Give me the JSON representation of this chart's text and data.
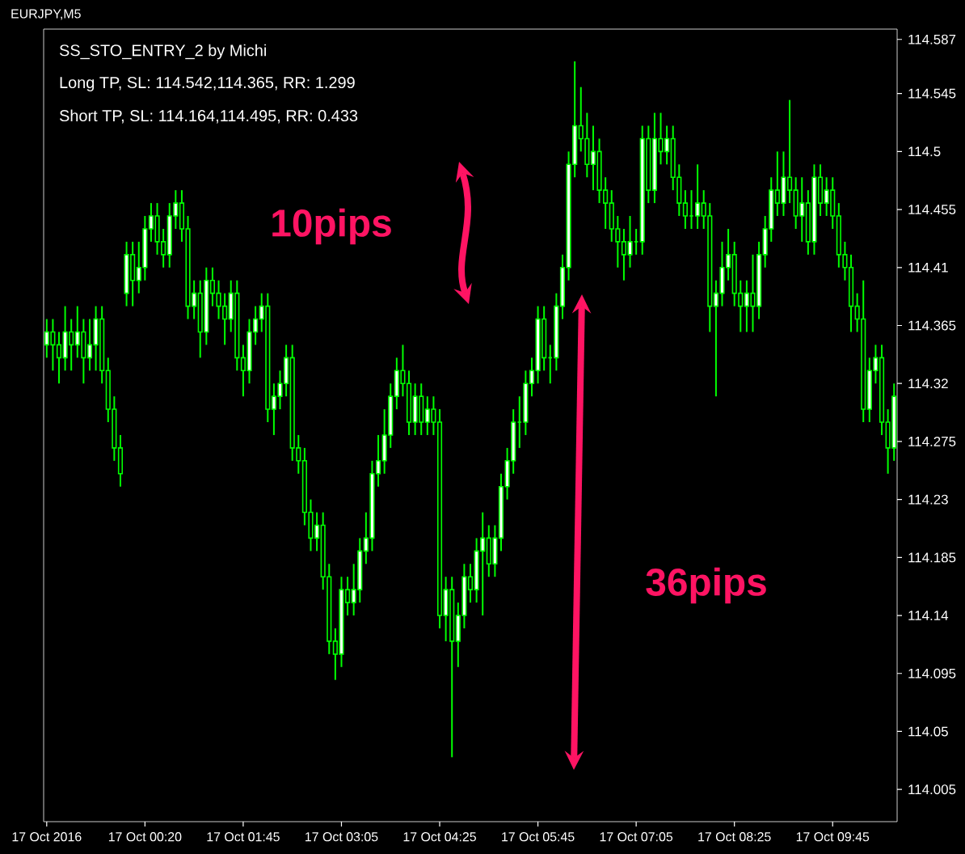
{
  "chart_data": {
    "type": "candlestick",
    "title": "EURJPY,M5",
    "annotations": [
      "SS_STO_ENTRY_2 by Michi",
      "Long  TP, SL: 114.542,114.365, RR: 1.299",
      "Short TP, SL: 114.164,114.495, RR: 0.433",
      "10pips",
      "36pips"
    ],
    "color": "#00ff00",
    "categories": [
      "17 Oct 2016",
      null,
      null,
      null,
      null,
      null,
      null,
      null,
      null,
      null,
      null,
      null,
      null,
      null,
      null,
      null,
      "17 Oct 00:20",
      null,
      null,
      null,
      null,
      null,
      null,
      null,
      null,
      null,
      null,
      null,
      null,
      null,
      null,
      null,
      "17 Oct 01:45",
      null,
      null,
      null,
      null,
      null,
      null,
      null,
      null,
      null,
      null,
      null,
      null,
      null,
      null,
      null,
      "17 Oct 03:05",
      null,
      null,
      null,
      null,
      null,
      null,
      null,
      null,
      null,
      null,
      null,
      null,
      null,
      null,
      null,
      "17 Oct 04:25",
      null,
      null,
      null,
      null,
      null,
      null,
      null,
      null,
      null,
      null,
      null,
      null,
      null,
      null,
      null,
      "17 Oct 05:45",
      null,
      null,
      null,
      null,
      null,
      null,
      null,
      null,
      null,
      null,
      null,
      null,
      null,
      null,
      null,
      "17 Oct 07:05",
      null,
      null,
      null,
      null,
      null,
      null,
      null,
      null,
      null,
      null,
      null,
      null,
      null,
      null,
      null,
      "17 Oct 08:25",
      null,
      null,
      null,
      null,
      null,
      null,
      null,
      null,
      null,
      null,
      null,
      null,
      null,
      null,
      null,
      "17 Oct 09:45",
      null,
      null,
      null,
      null,
      null,
      null,
      null,
      null,
      null,
      null
    ],
    "ohlc": [
      [
        114.35,
        114.37,
        114.34,
        114.36
      ],
      [
        114.36,
        114.37,
        114.33,
        114.35
      ],
      [
        114.35,
        114.36,
        114.32,
        114.34
      ],
      [
        114.34,
        114.38,
        114.33,
        114.36
      ],
      [
        114.36,
        114.37,
        114.33,
        114.35
      ],
      [
        114.35,
        114.38,
        114.34,
        114.36
      ],
      [
        114.36,
        114.37,
        114.32,
        114.34
      ],
      [
        114.34,
        114.37,
        114.33,
        114.35
      ],
      [
        114.35,
        114.38,
        114.33,
        114.37
      ],
      [
        114.37,
        114.38,
        114.32,
        114.33
      ],
      [
        114.33,
        114.34,
        114.29,
        114.3
      ],
      [
        114.3,
        114.31,
        114.26,
        114.27
      ],
      [
        114.27,
        114.28,
        114.24,
        114.25
      ],
      [
        114.39,
        114.43,
        114.38,
        114.42
      ],
      [
        114.42,
        114.43,
        114.38,
        114.4
      ],
      [
        114.4,
        114.43,
        114.39,
        114.41
      ],
      [
        114.41,
        114.45,
        114.4,
        114.44
      ],
      [
        114.44,
        114.46,
        114.43,
        114.45
      ],
      [
        114.45,
        114.46,
        114.42,
        114.43
      ],
      [
        114.43,
        114.44,
        114.41,
        114.42
      ],
      [
        114.42,
        114.46,
        114.41,
        114.45
      ],
      [
        114.45,
        114.47,
        114.44,
        114.46
      ],
      [
        114.46,
        114.47,
        114.43,
        114.44
      ],
      [
        114.44,
        114.45,
        114.37,
        114.38
      ],
      [
        114.38,
        114.4,
        114.37,
        114.39
      ],
      [
        114.39,
        114.4,
        114.34,
        114.36
      ],
      [
        114.36,
        114.41,
        114.35,
        114.4
      ],
      [
        114.4,
        114.41,
        114.38,
        114.39
      ],
      [
        114.39,
        114.4,
        114.37,
        114.38
      ],
      [
        114.38,
        114.39,
        114.35,
        114.37
      ],
      [
        114.37,
        114.4,
        114.36,
        114.39
      ],
      [
        114.39,
        114.4,
        114.33,
        114.34
      ],
      [
        114.34,
        114.35,
        114.31,
        114.33
      ],
      [
        114.33,
        114.37,
        114.32,
        114.36
      ],
      [
        114.36,
        114.38,
        114.35,
        114.37
      ],
      [
        114.37,
        114.39,
        114.36,
        114.38
      ],
      [
        114.38,
        114.39,
        114.29,
        114.3
      ],
      [
        114.3,
        114.32,
        114.28,
        114.31
      ],
      [
        114.31,
        114.33,
        114.3,
        114.32
      ],
      [
        114.32,
        114.35,
        114.31,
        114.34
      ],
      [
        114.34,
        114.35,
        114.26,
        114.27
      ],
      [
        114.27,
        114.28,
        114.25,
        114.26
      ],
      [
        114.26,
        114.27,
        114.21,
        114.22
      ],
      [
        114.22,
        114.23,
        114.19,
        114.2
      ],
      [
        114.2,
        114.22,
        114.19,
        114.21
      ],
      [
        114.21,
        114.22,
        114.16,
        114.17
      ],
      [
        114.17,
        114.18,
        114.11,
        114.12
      ],
      [
        114.12,
        114.13,
        114.09,
        114.11
      ],
      [
        114.11,
        114.17,
        114.1,
        114.16
      ],
      [
        114.16,
        114.17,
        114.14,
        114.15
      ],
      [
        114.15,
        114.18,
        114.14,
        114.16
      ],
      [
        114.16,
        114.2,
        114.15,
        114.19
      ],
      [
        114.19,
        114.22,
        114.18,
        114.2
      ],
      [
        114.2,
        114.26,
        114.19,
        114.25
      ],
      [
        114.25,
        114.28,
        114.24,
        114.26
      ],
      [
        114.26,
        114.3,
        114.25,
        114.28
      ],
      [
        114.28,
        114.32,
        114.27,
        114.31
      ],
      [
        114.31,
        114.34,
        114.3,
        114.33
      ],
      [
        114.33,
        114.35,
        114.31,
        114.32
      ],
      [
        114.32,
        114.33,
        114.28,
        114.29
      ],
      [
        114.29,
        114.32,
        114.28,
        114.31
      ],
      [
        114.31,
        114.32,
        114.28,
        114.29
      ],
      [
        114.29,
        114.31,
        114.28,
        114.3
      ],
      [
        114.3,
        114.31,
        114.28,
        114.29
      ],
      [
        114.29,
        114.3,
        114.13,
        114.14
      ],
      [
        114.14,
        114.17,
        114.12,
        114.16
      ],
      [
        114.16,
        114.17,
        114.03,
        114.12
      ],
      [
        114.12,
        114.15,
        114.1,
        114.14
      ],
      [
        114.14,
        114.18,
        114.13,
        114.17
      ],
      [
        114.17,
        114.18,
        114.15,
        114.16
      ],
      [
        114.16,
        114.2,
        114.15,
        114.19
      ],
      [
        114.19,
        114.22,
        114.14,
        114.2
      ],
      [
        114.2,
        114.21,
        114.17,
        114.18
      ],
      [
        114.18,
        114.21,
        114.17,
        114.2
      ],
      [
        114.2,
        114.25,
        114.19,
        114.24
      ],
      [
        114.24,
        114.27,
        114.23,
        114.26
      ],
      [
        114.26,
        114.3,
        114.25,
        114.29
      ],
      [
        114.29,
        114.31,
        114.27,
        114.29
      ],
      [
        114.29,
        114.33,
        114.28,
        114.32
      ],
      [
        114.32,
        114.34,
        114.31,
        114.33
      ],
      [
        114.33,
        114.38,
        114.32,
        114.37
      ],
      [
        114.37,
        114.38,
        114.33,
        114.34
      ],
      [
        114.34,
        114.35,
        114.32,
        114.34
      ],
      [
        114.34,
        114.39,
        114.33,
        114.38
      ],
      [
        114.38,
        114.42,
        114.37,
        114.41
      ],
      [
        114.41,
        114.5,
        114.4,
        114.49
      ],
      [
        114.49,
        114.57,
        114.48,
        114.52
      ],
      [
        114.52,
        114.55,
        114.5,
        114.51
      ],
      [
        114.51,
        114.53,
        114.48,
        114.49
      ],
      [
        114.49,
        114.52,
        114.47,
        114.5
      ],
      [
        114.5,
        114.51,
        114.46,
        114.47
      ],
      [
        114.47,
        114.48,
        114.44,
        114.46
      ],
      [
        114.46,
        114.47,
        114.43,
        114.44
      ],
      [
        114.44,
        114.45,
        114.41,
        114.43
      ],
      [
        114.43,
        114.44,
        114.4,
        114.42
      ],
      [
        114.42,
        114.45,
        114.41,
        114.43
      ],
      [
        114.43,
        114.44,
        114.42,
        114.43
      ],
      [
        114.43,
        114.52,
        114.42,
        114.51
      ],
      [
        114.51,
        114.52,
        114.46,
        114.47
      ],
      [
        114.47,
        114.53,
        114.46,
        114.51
      ],
      [
        114.51,
        114.53,
        114.49,
        114.5
      ],
      [
        114.5,
        114.52,
        114.49,
        114.51
      ],
      [
        114.51,
        114.52,
        114.47,
        114.48
      ],
      [
        114.48,
        114.49,
        114.45,
        114.46
      ],
      [
        114.46,
        114.47,
        114.44,
        114.45
      ],
      [
        114.45,
        114.47,
        114.44,
        114.45
      ],
      [
        114.45,
        114.49,
        114.44,
        114.46
      ],
      [
        114.46,
        114.47,
        114.44,
        114.45
      ],
      [
        114.45,
        114.46,
        114.36,
        114.38
      ],
      [
        114.38,
        114.4,
        114.31,
        114.39
      ],
      [
        114.39,
        114.43,
        114.38,
        114.41
      ],
      [
        114.41,
        114.44,
        114.4,
        114.42
      ],
      [
        114.42,
        114.43,
        114.38,
        114.39
      ],
      [
        114.39,
        114.4,
        114.36,
        114.38
      ],
      [
        114.38,
        114.4,
        114.36,
        114.39
      ],
      [
        114.39,
        114.42,
        114.36,
        114.38
      ],
      [
        114.38,
        114.43,
        114.37,
        114.42
      ],
      [
        114.42,
        114.45,
        114.41,
        114.44
      ],
      [
        114.44,
        114.48,
        114.43,
        114.47
      ],
      [
        114.47,
        114.5,
        114.45,
        114.46
      ],
      [
        114.46,
        114.5,
        114.45,
        114.48
      ],
      [
        114.48,
        114.54,
        114.46,
        114.47
      ],
      [
        114.47,
        114.48,
        114.44,
        114.45
      ],
      [
        114.45,
        114.48,
        114.43,
        114.46
      ],
      [
        114.46,
        114.47,
        114.42,
        114.43
      ],
      [
        114.43,
        114.49,
        114.42,
        114.48
      ],
      [
        114.48,
        114.49,
        114.45,
        114.46
      ],
      [
        114.46,
        114.48,
        114.45,
        114.47
      ],
      [
        114.47,
        114.48,
        114.44,
        114.45
      ],
      [
        114.45,
        114.46,
        114.41,
        114.42
      ],
      [
        114.42,
        114.43,
        114.4,
        114.41
      ],
      [
        114.41,
        114.42,
        114.36,
        114.38
      ],
      [
        114.38,
        114.39,
        114.36,
        114.37
      ],
      [
        114.37,
        114.4,
        114.29,
        114.3
      ],
      [
        114.3,
        114.34,
        114.29,
        114.33
      ],
      [
        114.33,
        114.35,
        114.32,
        114.34
      ],
      [
        114.34,
        114.35,
        114.28,
        114.29
      ],
      [
        114.29,
        114.3,
        114.25,
        114.27
      ],
      [
        114.27,
        114.32,
        114.26,
        114.31
      ]
    ],
    "ylim": [
      113.98,
      114.595
    ],
    "yticks": [
      114.005,
      114.05,
      114.095,
      114.14,
      114.185,
      114.23,
      114.275,
      114.32,
      114.365,
      114.41,
      114.455,
      114.5,
      114.545,
      114.587
    ]
  }
}
